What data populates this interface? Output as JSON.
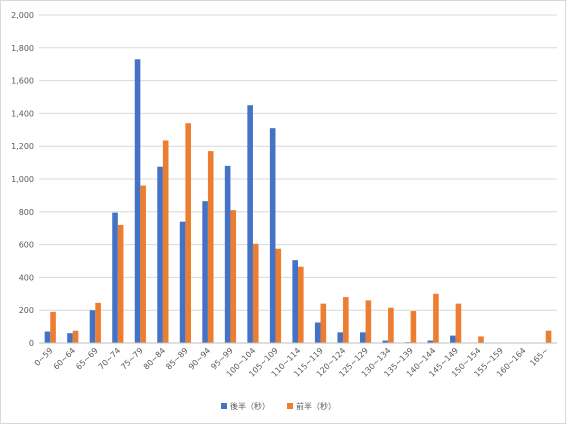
{
  "chart_data": {
    "type": "bar",
    "categories": [
      "0~59",
      "60~64",
      "65~69",
      "70~74",
      "75~79",
      "80~84",
      "85~89",
      "90~94",
      "95~99",
      "100~104",
      "105~109",
      "110~114",
      "115~119",
      "120~124",
      "125~129",
      "130~134",
      "135~139",
      "140~144",
      "145~149",
      "150~154",
      "155~159",
      "160~164",
      "165~"
    ],
    "series": [
      {
        "name": "後半（秒）",
        "color": "#4472C4",
        "values": [
          70,
          60,
          200,
          795,
          1730,
          1075,
          740,
          865,
          1080,
          1450,
          1310,
          505,
          125,
          65,
          65,
          15,
          5,
          15,
          45,
          0,
          0,
          0,
          0
        ]
      },
      {
        "name": "前半（秒）",
        "color": "#ED7D31",
        "values": [
          190,
          75,
          245,
          720,
          960,
          1235,
          1340,
          1170,
          810,
          605,
          575,
          465,
          240,
          280,
          260,
          215,
          195,
          300,
          240,
          40,
          0,
          0,
          75
        ]
      }
    ],
    "ylim": [
      0,
      2000
    ],
    "yticks": [
      "0",
      "200",
      "400",
      "600",
      "800",
      "1,000",
      "1,200",
      "1,400",
      "1,600",
      "1,800",
      "2,000"
    ],
    "grid": true,
    "legend_position": "bottom"
  }
}
